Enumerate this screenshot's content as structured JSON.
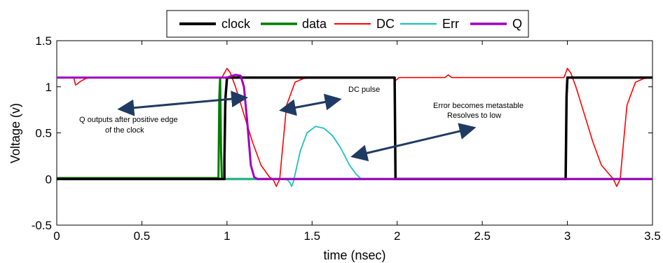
{
  "chart_data": {
    "type": "line",
    "xlabel": "time (nsec)",
    "ylabel": "Voltage (v)",
    "xlim": [
      0,
      3.5
    ],
    "ylim": [
      -0.5,
      1.5
    ],
    "xticks": [
      "0",
      "0.5",
      "1",
      "1.5",
      "2",
      "2.5",
      "3",
      "3.5"
    ],
    "yticks": [
      "-0.5",
      "0",
      "0.5",
      "1",
      "1.5"
    ],
    "legend_position": "top-center",
    "grid": false,
    "series": [
      {
        "name": "clock",
        "color": "#000000",
        "x": [
          0,
          0.985,
          0.985,
          0.99,
          0.992,
          1.0,
          1.985,
          1.99,
          2.0,
          2.99,
          2.995,
          3.0,
          3.5
        ],
        "y": [
          0,
          0,
          0.2,
          0.8,
          0.9,
          1.1,
          1.1,
          0.0,
          0.0,
          0.0,
          0.9,
          1.1,
          1.1
        ]
      },
      {
        "name": "data",
        "color": "#007f00",
        "x": [
          0,
          0.95,
          0.955,
          0.96,
          0.965,
          0.97,
          3.5
        ],
        "y": [
          0.01,
          0.01,
          0.9,
          1.1,
          0.3,
          0.0,
          0.0
        ]
      },
      {
        "name": "DC",
        "color": "#ff0000",
        "x": [
          0,
          0.1,
          0.11,
          0.12,
          0.14,
          0.17,
          0.2,
          0.97,
          1.0,
          1.02,
          1.05,
          1.1,
          1.15,
          1.2,
          1.25,
          1.27,
          1.29,
          1.31,
          1.33,
          1.35,
          1.4,
          1.45,
          1.5,
          1.6,
          1.98,
          1.99,
          2.0,
          2.01,
          2.02,
          2.28,
          2.3,
          2.32,
          2.98,
          3.0,
          3.02,
          3.05,
          3.1,
          3.15,
          3.2,
          3.27,
          3.29,
          3.31,
          3.33,
          3.35,
          3.4,
          3.45,
          3.5
        ],
        "y": [
          1.1,
          1.1,
          1.02,
          1.03,
          1.06,
          1.09,
          1.1,
          1.1,
          1.2,
          1.15,
          1.0,
          0.7,
          0.4,
          0.15,
          0.02,
          0.0,
          -0.08,
          0.0,
          0.4,
          0.8,
          1.05,
          1.09,
          1.1,
          1.1,
          1.1,
          1.07,
          1.08,
          1.1,
          1.1,
          1.1,
          1.13,
          1.1,
          1.1,
          1.2,
          1.15,
          1.0,
          0.7,
          0.4,
          0.15,
          0.0,
          -0.08,
          0.0,
          0.4,
          0.8,
          1.05,
          1.09,
          1.1
        ]
      },
      {
        "name": "Err",
        "color": "#20c0c0",
        "x": [
          0,
          1.35,
          1.37,
          1.38,
          1.39,
          1.4,
          1.43,
          1.47,
          1.52,
          1.57,
          1.62,
          1.67,
          1.72,
          1.76,
          1.79,
          1.81,
          3.5
        ],
        "y": [
          0,
          0,
          -0.04,
          -0.08,
          -0.03,
          0.05,
          0.3,
          0.5,
          0.57,
          0.55,
          0.47,
          0.33,
          0.15,
          0.05,
          0.0,
          0.0,
          0.0
        ]
      },
      {
        "name": "Q",
        "color": "#a000c0",
        "x": [
          0,
          1.0,
          1.05,
          1.08,
          1.1,
          1.12,
          1.14,
          1.16,
          1.18,
          1.2,
          1.25,
          3.5
        ],
        "y": [
          1.1,
          1.1,
          1.13,
          1.12,
          1.0,
          0.6,
          0.15,
          0.02,
          0.0,
          0.0,
          0.0,
          0.0
        ]
      }
    ],
    "annotations": [
      {
        "lines": [
          "Q outputs after positive edge",
          "of the clock"
        ]
      },
      {
        "lines": [
          "DC pulse"
        ]
      },
      {
        "lines": [
          "Error becomes metastable",
          "Resolves to low"
        ]
      }
    ]
  }
}
